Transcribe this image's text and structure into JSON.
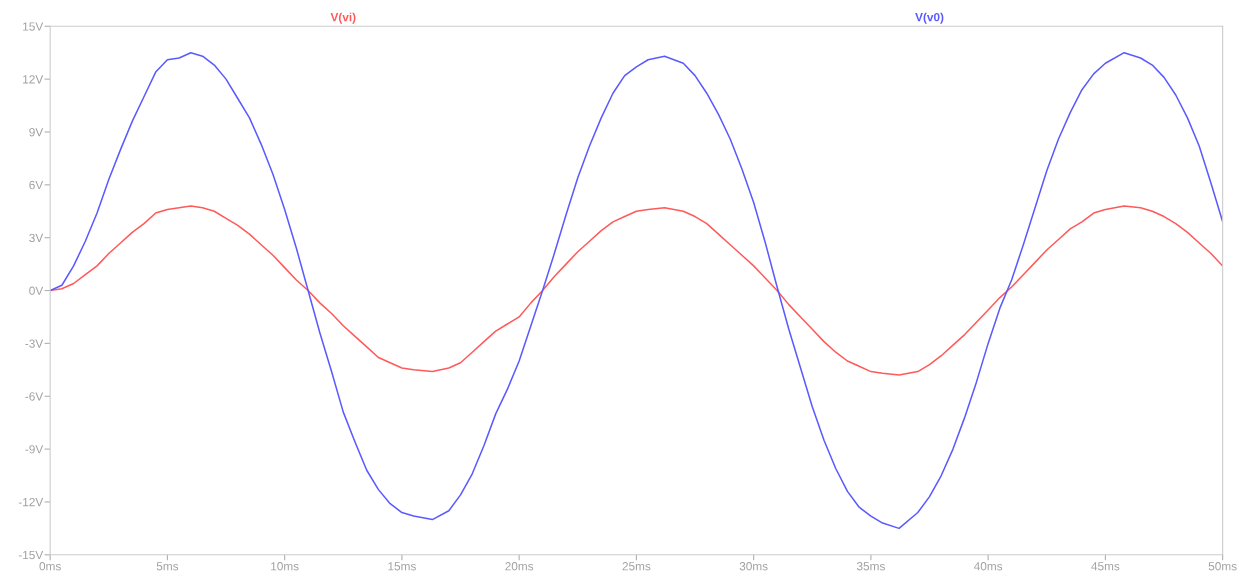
{
  "chart_data": {
    "type": "line",
    "legend": "top",
    "grid": false,
    "xlim": [
      0,
      50
    ],
    "ylim": [
      -15,
      15
    ],
    "xticks": [
      {
        "value": 0,
        "label": "0ms"
      },
      {
        "value": 5,
        "label": "5ms"
      },
      {
        "value": 10,
        "label": "10ms"
      },
      {
        "value": 15,
        "label": "15ms"
      },
      {
        "value": 20,
        "label": "20ms"
      },
      {
        "value": 25,
        "label": "25ms"
      },
      {
        "value": 30,
        "label": "30ms"
      },
      {
        "value": 35,
        "label": "35ms"
      },
      {
        "value": 40,
        "label": "40ms"
      },
      {
        "value": 45,
        "label": "45ms"
      },
      {
        "value": 50,
        "label": "50ms"
      }
    ],
    "yticks": [
      {
        "value": 15,
        "label": "15V"
      },
      {
        "value": 12,
        "label": "12V"
      },
      {
        "value": 9,
        "label": "9V"
      },
      {
        "value": 6,
        "label": "6V"
      },
      {
        "value": 3,
        "label": "3V"
      },
      {
        "value": 0,
        "label": "0V"
      },
      {
        "value": -3,
        "label": "-3V"
      },
      {
        "value": -6,
        "label": "-6V"
      },
      {
        "value": -9,
        "label": "-9V"
      },
      {
        "value": -12,
        "label": "-12V"
      },
      {
        "value": -15,
        "label": "-15V"
      }
    ],
    "series": [
      {
        "name": "V(vi)",
        "color": "#ff5a5a",
        "x": [
          0,
          0.5,
          1,
          1.5,
          2,
          2.5,
          3,
          3.5,
          4,
          4.5,
          5,
          5.5,
          6,
          6.5,
          7,
          7.5,
          8,
          8.5,
          9,
          9.5,
          10,
          10.5,
          11,
          11.5,
          12,
          12.5,
          13,
          13.5,
          14,
          14.5,
          15,
          15.5,
          16.3,
          17,
          17.5,
          18,
          18.5,
          19,
          19.5,
          20,
          20.5,
          21,
          21.5,
          22,
          22.5,
          23,
          23.5,
          24,
          24.5,
          25,
          25.5,
          26.2,
          27,
          27.5,
          28,
          28.5,
          29,
          29.5,
          30,
          30.5,
          31,
          31.5,
          32,
          32.5,
          33,
          33.5,
          34,
          34.5,
          35,
          35.5,
          36.2,
          37,
          37.5,
          38,
          38.5,
          39,
          39.5,
          40,
          40.5,
          41,
          41.5,
          42,
          42.5,
          43,
          43.5,
          44,
          44.5,
          45,
          45.8,
          46.5,
          47,
          47.5,
          48,
          48.5,
          49,
          49.5,
          50
        ],
        "values": [
          0,
          0.1,
          0.4,
          0.9,
          1.4,
          2.1,
          2.7,
          3.3,
          3.8,
          4.4,
          4.6,
          4.7,
          4.8,
          4.7,
          4.5,
          4.1,
          3.7,
          3.2,
          2.6,
          2.0,
          1.3,
          0.6,
          0.0,
          -0.7,
          -1.3,
          -2.0,
          -2.6,
          -3.2,
          -3.8,
          -4.1,
          -4.4,
          -4.5,
          -4.6,
          -4.4,
          -4.1,
          -3.5,
          -2.9,
          -2.3,
          -1.9,
          -1.5,
          -0.7,
          0.0,
          0.8,
          1.5,
          2.2,
          2.8,
          3.4,
          3.9,
          4.2,
          4.5,
          4.6,
          4.7,
          4.5,
          4.2,
          3.8,
          3.2,
          2.6,
          2.0,
          1.4,
          0.7,
          0.0,
          -0.8,
          -1.5,
          -2.2,
          -2.9,
          -3.5,
          -4.0,
          -4.3,
          -4.6,
          -4.7,
          -4.8,
          -4.6,
          -4.2,
          -3.7,
          -3.1,
          -2.5,
          -1.8,
          -1.1,
          -0.4,
          0.2,
          0.9,
          1.6,
          2.3,
          2.9,
          3.5,
          3.9,
          4.4,
          4.6,
          4.8,
          4.7,
          4.5,
          4.2,
          3.8,
          3.3,
          2.7,
          2.1,
          1.4
        ]
      },
      {
        "name": "V(v0)",
        "color": "#5a5aff",
        "x": [
          0,
          0.5,
          1,
          1.5,
          2,
          2.5,
          3,
          3.5,
          4,
          4.5,
          5,
          5.5,
          6,
          6.5,
          7,
          7.5,
          8,
          8.5,
          9,
          9.5,
          10,
          10.5,
          11,
          11.5,
          12,
          12.5,
          13,
          13.5,
          14,
          14.5,
          15,
          15.5,
          16.3,
          17,
          17.5,
          18,
          18.5,
          19,
          19.5,
          20,
          20.5,
          21,
          21.5,
          22,
          22.5,
          23,
          23.5,
          24,
          24.5,
          25,
          25.5,
          26.2,
          27,
          27.5,
          28,
          28.5,
          29,
          29.5,
          30,
          30.5,
          31,
          31.5,
          32,
          32.5,
          33,
          33.5,
          34,
          34.5,
          35,
          35.5,
          36.2,
          37,
          37.5,
          38,
          38.5,
          39,
          39.5,
          40,
          40.5,
          41,
          41.5,
          42,
          42.5,
          43,
          43.5,
          44,
          44.5,
          45,
          45.8,
          46.5,
          47,
          47.5,
          48,
          48.5,
          49,
          49.5,
          50
        ],
        "values": [
          0,
          0.3,
          1.4,
          2.8,
          4.4,
          6.3,
          8.0,
          9.6,
          11.0,
          12.4,
          13.1,
          13.2,
          13.5,
          13.3,
          12.8,
          12.0,
          10.9,
          9.8,
          8.3,
          6.6,
          4.6,
          2.4,
          0.0,
          -2.4,
          -4.6,
          -6.9,
          -8.6,
          -10.2,
          -11.3,
          -12.1,
          -12.6,
          -12.8,
          -13.0,
          -12.5,
          -11.6,
          -10.4,
          -8.8,
          -7.0,
          -5.6,
          -4.0,
          -2.0,
          0.0,
          2.1,
          4.3,
          6.4,
          8.2,
          9.8,
          11.2,
          12.2,
          12.7,
          13.1,
          13.3,
          12.9,
          12.2,
          11.2,
          10.0,
          8.6,
          6.9,
          5.0,
          2.7,
          0.2,
          -2.2,
          -4.4,
          -6.6,
          -8.5,
          -10.1,
          -11.4,
          -12.3,
          -12.8,
          -13.2,
          -13.5,
          -12.6,
          -11.7,
          -10.5,
          -9.0,
          -7.2,
          -5.2,
          -3.0,
          -1.0,
          0.6,
          2.6,
          4.7,
          6.8,
          8.6,
          10.1,
          11.4,
          12.3,
          12.9,
          13.5,
          13.2,
          12.8,
          12.1,
          11.1,
          9.8,
          8.2,
          6.1,
          3.9
        ]
      }
    ]
  }
}
